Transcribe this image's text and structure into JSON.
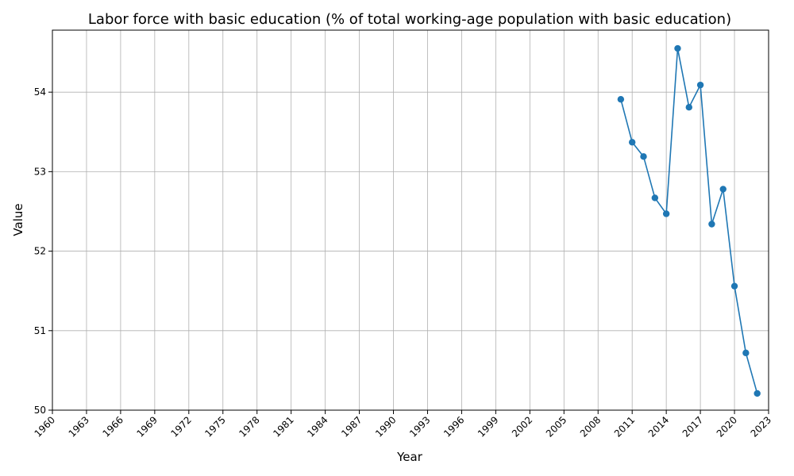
{
  "chart_data": {
    "type": "line",
    "title": "Labor force with basic education (% of total working-age population with basic education)",
    "xlabel": "Year",
    "ylabel": "Value",
    "xlim": [
      1960,
      2023
    ],
    "ylim": [
      50,
      54.78
    ],
    "xticks": [
      1960,
      1963,
      1966,
      1969,
      1972,
      1975,
      1978,
      1981,
      1984,
      1987,
      1990,
      1993,
      1996,
      1999,
      2002,
      2005,
      2008,
      2011,
      2014,
      2017,
      2020,
      2023
    ],
    "yticks": [
      50,
      51,
      52,
      53,
      54
    ],
    "grid": true,
    "series": [
      {
        "color": "#1f77b4",
        "marker": "circle",
        "x": [
          2010,
          2011,
          2012,
          2013,
          2014,
          2015,
          2016,
          2017,
          2018,
          2019,
          2020,
          2021,
          2022
        ],
        "y": [
          53.91,
          53.37,
          53.19,
          52.67,
          52.47,
          54.55,
          53.81,
          54.09,
          52.34,
          52.78,
          51.56,
          50.72,
          50.21
        ]
      }
    ]
  }
}
